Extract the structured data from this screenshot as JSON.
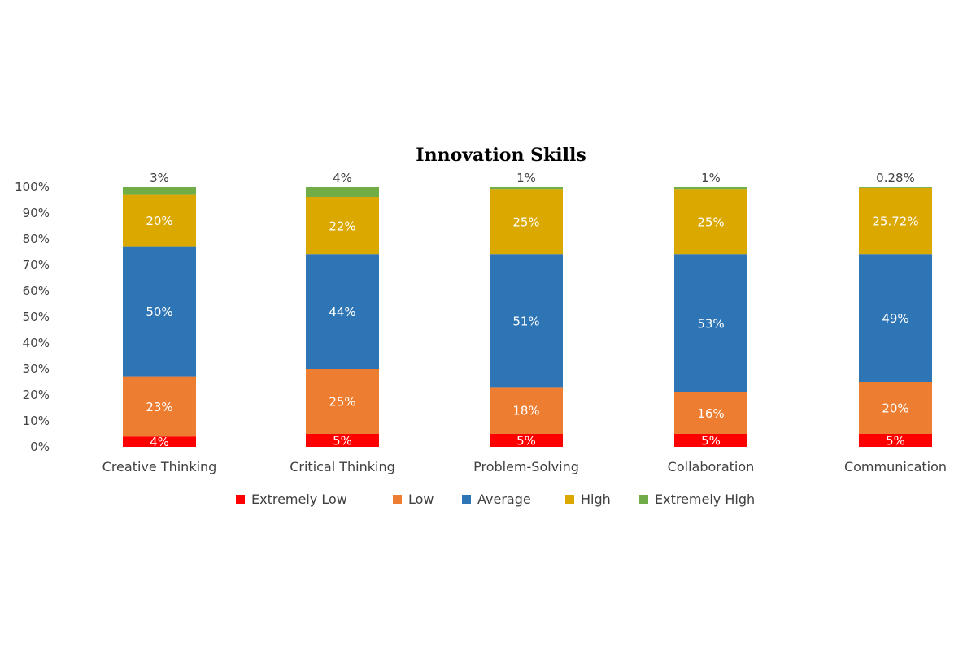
{
  "chart_data": {
    "type": "bar",
    "stacked": true,
    "title": "Innovation Skills",
    "xlabel": "",
    "ylabel": "",
    "ylim": [
      0,
      100
    ],
    "yticks": [
      "0%",
      "10%",
      "20%",
      "30%",
      "40%",
      "50%",
      "60%",
      "70%",
      "80%",
      "90%",
      "100%"
    ],
    "categories": [
      "Creative Thinking",
      "Critical Thinking",
      "Problem-Solving",
      "Collaboration",
      "Communication"
    ],
    "series": [
      {
        "name": "Extremely Low",
        "color": "#ff0000",
        "values": [
          4,
          5,
          5,
          5,
          5
        ],
        "labels": [
          "4%",
          "5%",
          "5%",
          "5%",
          "5%"
        ]
      },
      {
        "name": "Low",
        "color": "#ed7d31",
        "values": [
          23,
          25,
          18,
          16,
          20
        ],
        "labels": [
          "23%",
          "25%",
          "18%",
          "16%",
          "20%"
        ]
      },
      {
        "name": "Average",
        "color": "#2e75b6",
        "values": [
          50,
          44,
          51,
          53,
          49
        ],
        "labels": [
          "50%",
          "44%",
          "51%",
          "53%",
          "49%"
        ]
      },
      {
        "name": "High",
        "color": "#dba800",
        "values": [
          20,
          22,
          25,
          25,
          25.72
        ],
        "labels": [
          "20%",
          "22%",
          "25%",
          "25%",
          "25.72%"
        ]
      },
      {
        "name": "Extremely High",
        "color": "#70ad47",
        "values": [
          3,
          4,
          1,
          1,
          0.28
        ],
        "labels": [
          "3%",
          "4%",
          "1%",
          "1%",
          "0.28%"
        ]
      }
    ],
    "grid": false,
    "legend_position": "bottom"
  }
}
